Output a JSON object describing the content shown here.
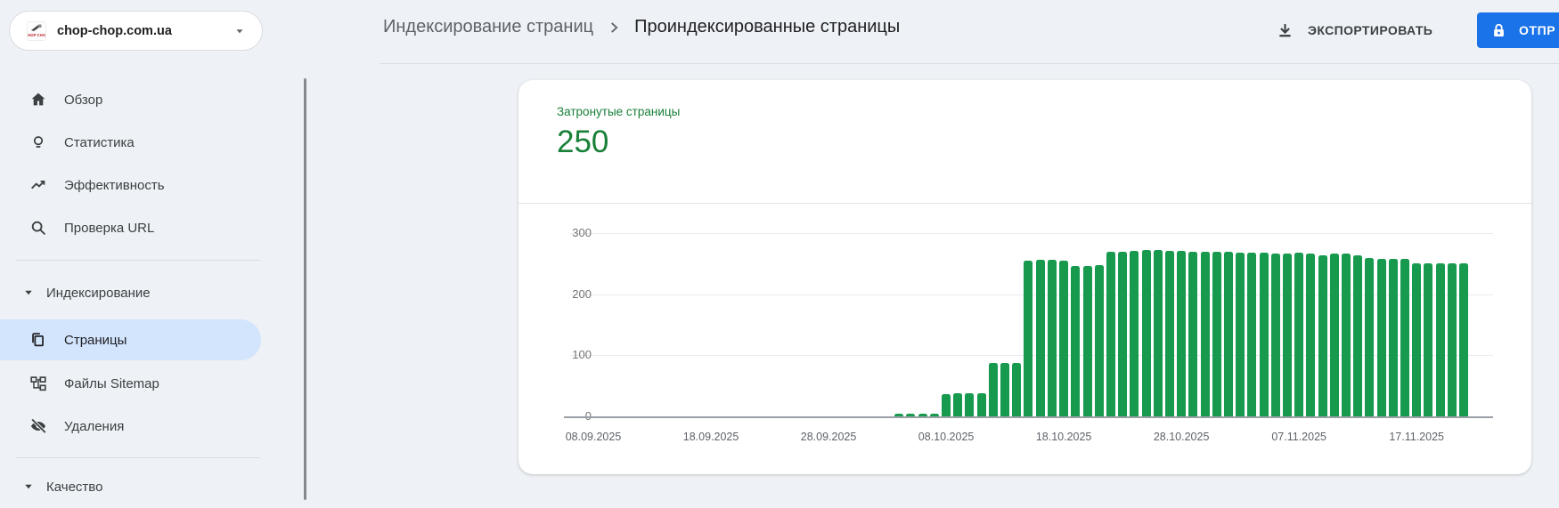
{
  "property_selector": {
    "domain": "chop-chop.com.ua"
  },
  "sidebar": {
    "items": [
      {
        "label": "Обзор"
      },
      {
        "label": "Статистика"
      },
      {
        "label": "Эффективность"
      },
      {
        "label": "Проверка URL"
      }
    ],
    "sections": [
      {
        "label": "Индексирование",
        "items": [
          {
            "label": "Страницы",
            "selected": true
          },
          {
            "label": "Файлы Sitemap",
            "selected": false
          },
          {
            "label": "Удаления",
            "selected": false
          }
        ]
      },
      {
        "label": "Качество",
        "items": []
      }
    ]
  },
  "header": {
    "breadcrumb": [
      "Индексирование страниц",
      "Проиндексированные страницы"
    ],
    "export_label": "ЭКСПОРТИРОВАТЬ",
    "submit_label": "ОТПР"
  },
  "summary": {
    "label": "Затронутые страницы",
    "value": "250"
  },
  "chart_data": {
    "type": "bar",
    "title": "Затронутые страницы",
    "latest_value": 250,
    "ylim": [
      0,
      300
    ],
    "yticks": [
      0,
      100,
      200,
      300
    ],
    "grid": true,
    "legend": "none",
    "x_start_date": "06.09.2025",
    "x_end_date": "23.11.2025",
    "days_total": 79,
    "xticks": [
      {
        "label": "08.09.2025",
        "day_index": 2
      },
      {
        "label": "18.09.2025",
        "day_index": 12
      },
      {
        "label": "28.09.2025",
        "day_index": 22
      },
      {
        "label": "08.10.2025",
        "day_index": 32
      },
      {
        "label": "18.10.2025",
        "day_index": 42
      },
      {
        "label": "28.10.2025",
        "day_index": 52
      },
      {
        "label": "07.11.2025",
        "day_index": 62
      },
      {
        "label": "17.11.2025",
        "day_index": 72
      }
    ],
    "series": [
      {
        "name": "Затронутые страницы",
        "color": "#189a4e",
        "values": [
          0,
          0,
          0,
          0,
          0,
          0,
          0,
          0,
          0,
          0,
          0,
          0,
          0,
          0,
          0,
          0,
          0,
          0,
          0,
          0,
          0,
          0,
          0,
          0,
          0,
          0,
          0,
          0,
          4,
          5,
          5,
          5,
          37,
          38,
          38,
          38,
          88,
          88,
          87,
          255,
          256,
          256,
          255,
          246,
          246,
          247,
          269,
          270,
          271,
          272,
          272,
          271,
          271,
          270,
          270,
          269,
          269,
          268,
          268,
          268,
          267,
          267,
          268,
          266,
          263,
          266,
          266,
          263,
          259,
          258,
          258,
          258,
          251,
          250,
          250,
          250,
          250,
          0,
          0
        ]
      }
    ]
  },
  "colors": {
    "accent_blue": "#1a73e8",
    "bar_green": "#189a4e",
    "summary_green": "#188038",
    "selected_item_bg": "#d3e4fd",
    "page_background": "#eef1f5"
  },
  "icons": {
    "site-favicon": "chop-chop logo",
    "home-icon": "house",
    "lightbulb-icon": "bulb",
    "trending-up-icon": "zigzag arrow",
    "search-icon": "magnifier",
    "pages-icon": "copy sheets",
    "sitemap-icon": "org tree",
    "eye-off-icon": "hidden eye",
    "caret-down-icon": "▾",
    "chevron-right-icon": "›",
    "download-icon": "arrow to tray",
    "lock-icon": "padlock"
  }
}
